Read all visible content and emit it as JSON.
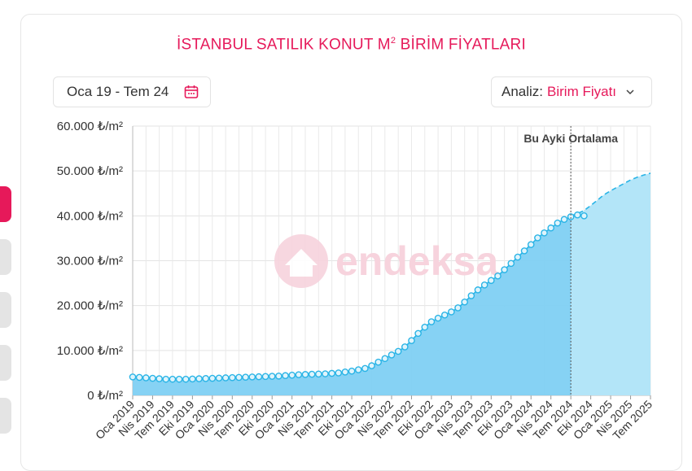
{
  "title": {
    "prefix": "İSTANBUL SATILIK KONUT M",
    "sup": "2",
    "suffix": " BİRİM FİYATLARI"
  },
  "date_range": {
    "label": "Oca 19 - Tem 24",
    "icon": "calendar-icon"
  },
  "analysis": {
    "label": "Analiz:",
    "value": "Birim Fiyatı",
    "icon": "chevron-down-icon"
  },
  "watermark": {
    "text": "endeksa",
    "icon": "house-icon"
  },
  "colors": {
    "accent": "#e6195a",
    "area": "#7fd0f3",
    "line": "#2ab4e6",
    "forecast_area": "#b3e5f8"
  },
  "chart_data": {
    "type": "area",
    "ylim": [
      0,
      60000
    ],
    "yticks": [
      {
        "value": 0,
        "label": "0 ₺/m²"
      },
      {
        "value": 10000,
        "label": "10.000 ₺/m²"
      },
      {
        "value": 20000,
        "label": "20.000 ₺/m²"
      },
      {
        "value": 30000,
        "label": "30.000 ₺/m²"
      },
      {
        "value": 40000,
        "label": "40.000 ₺/m²"
      },
      {
        "value": 50000,
        "label": "50.000 ₺/m²"
      },
      {
        "value": 60000,
        "label": "60.000 ₺/m²"
      }
    ],
    "xticks": [
      "Oca 2019",
      "Nis 2019",
      "Tem 2019",
      "Eki 2019",
      "Oca 2020",
      "Nis 2020",
      "Tem 2020",
      "Eki 2020",
      "Oca 2021",
      "Nis 2021",
      "Tem 2021",
      "Eki 2021",
      "Oca 2022",
      "Nis 2022",
      "Tem 2022",
      "Eki 2022",
      "Oca 2023",
      "Nis 2023",
      "Tem 2023",
      "Eki 2023",
      "Oca 2024",
      "Nis 2024",
      "Tem 2024",
      "Eki 2024",
      "Oca 2025",
      "Nis 2025",
      "Tem 2025"
    ],
    "marker": {
      "label": "Bu Ayki Ortalama",
      "month_index": 66
    },
    "series": [
      {
        "values": [
          4100,
          4000,
          3900,
          3800,
          3700,
          3600,
          3600,
          3600,
          3600,
          3650,
          3700,
          3750,
          3800,
          3850,
          3900,
          3950,
          4000,
          4050,
          4100,
          4150,
          4200,
          4250,
          4300,
          4400,
          4500,
          4600,
          4650,
          4700,
          4750,
          4800,
          4900,
          5000,
          5200,
          5400,
          5700,
          6000,
          6600,
          7400,
          8200,
          9000,
          9800,
          10800,
          12200,
          13800,
          15200,
          16400,
          17200,
          17900,
          18600,
          19500,
          20800,
          22200,
          23500,
          24600,
          25600,
          26600,
          28000,
          29400,
          30800,
          32200,
          33600,
          35100,
          36200,
          37300,
          38400,
          39200,
          39800,
          40200,
          40000
        ]
      },
      {
        "values": [
          40000,
          40500,
          41200,
          42300,
          43500,
          44700,
          45600,
          46400,
          47200,
          48000,
          48600,
          49100,
          49500
        ]
      }
    ]
  }
}
